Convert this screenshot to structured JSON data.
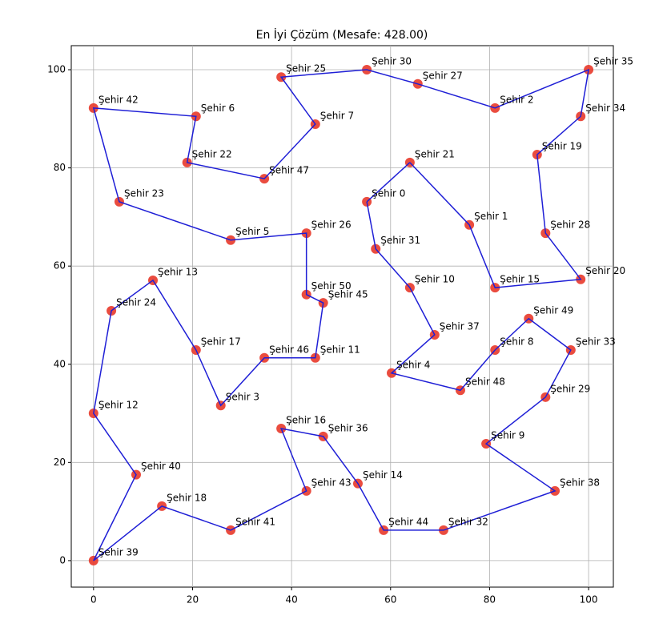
{
  "chart_data": {
    "type": "scatter",
    "title": "En İyi Çözüm (Mesafe: 428.00)",
    "labels": [
      "Şehir 0",
      "Şehir 31",
      "Şehir 10",
      "Şehir 37",
      "Şehir 4",
      "Şehir 48",
      "Şehir 8",
      "Şehir 49",
      "Şehir 33",
      "Şehir 29",
      "Şehir 9",
      "Şehir 38",
      "Şehir 32",
      "Şehir 44",
      "Şehir 14",
      "Şehir 36",
      "Şehir 16",
      "Şehir 43",
      "Şehir 41",
      "Şehir 18",
      "Şehir 39",
      "Şehir 40",
      "Şehir 12",
      "Şehir 24",
      "Şehir 13",
      "Şehir 17",
      "Şehir 3",
      "Şehir 46",
      "Şehir 11",
      "Şehir 45",
      "Şehir 50",
      "Şehir 26",
      "Şehir 5",
      "Şehir 23",
      "Şehir 42",
      "Şehir 6",
      "Şehir 22",
      "Şehir 47",
      "Şehir 7",
      "Şehir 25",
      "Şehir 30",
      "Şehir 27",
      "Şehir 2",
      "Şehir 35",
      "Şehir 34",
      "Şehir 19",
      "Şehir 28",
      "Şehir 20",
      "Şehir 15",
      "Şehir 1",
      "Şehir 21"
    ],
    "x": [
      55.2,
      57.0,
      63.9,
      68.9,
      60.2,
      74.1,
      81.1,
      87.9,
      96.4,
      91.3,
      79.3,
      93.2,
      70.7,
      58.6,
      53.4,
      46.4,
      37.9,
      43.0,
      27.7,
      13.8,
      0,
      8.6,
      0,
      3.6,
      12.0,
      20.7,
      25.7,
      34.5,
      44.8,
      46.4,
      43.0,
      43.0,
      27.7,
      5.2,
      0,
      20.7,
      18.9,
      34.5,
      44.8,
      37.9,
      55.2,
      65.5,
      81.1,
      100,
      98.4,
      89.6,
      91.3,
      98.4,
      81.1,
      75.9,
      63.9
    ],
    "y": [
      73.1,
      63.5,
      55.6,
      46.0,
      38.2,
      34.7,
      42.9,
      49.3,
      42.9,
      33.3,
      23.8,
      14.2,
      6.2,
      6.2,
      15.7,
      25.3,
      26.9,
      14.2,
      6.2,
      11.1,
      0,
      17.5,
      30.0,
      50.9,
      57.1,
      42.9,
      31.6,
      41.3,
      41.3,
      52.5,
      54.2,
      66.7,
      65.3,
      73.1,
      92.2,
      90.5,
      81.1,
      77.8,
      88.9,
      98.5,
      100,
      97.1,
      92.2,
      100,
      90.5,
      82.7,
      66.7,
      57.3,
      55.6,
      68.4,
      81.1
    ],
    "point_color": "#e8392a",
    "line_color": "#1f1fd6",
    "closed": true,
    "xlim": [
      -4.5,
      105
    ],
    "ylim": [
      -5.4,
      104.9
    ],
    "xticks": [
      0,
      20,
      40,
      60,
      80,
      100
    ],
    "yticks": [
      0,
      20,
      40,
      60,
      80,
      100
    ],
    "grid": true
  }
}
